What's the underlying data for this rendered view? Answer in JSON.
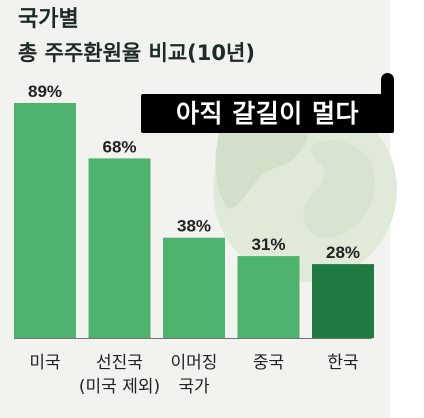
{
  "chart_data": {
    "type": "bar",
    "title": "국가별",
    "subtitle": "총 주주환원율 비교(10년)",
    "badge": "아직 갈길이 멀다",
    "categories": [
      [
        "미국"
      ],
      [
        "선진국",
        "(미국 제외)"
      ],
      [
        "이머징",
        "국가"
      ],
      [
        "중국"
      ],
      [
        "한국"
      ]
    ],
    "values": [
      89,
      68,
      38,
      31,
      28
    ],
    "value_labels": [
      "89%",
      "68%",
      "38%",
      "31%",
      "28%"
    ],
    "ylim": [
      0,
      100
    ],
    "grid": false,
    "colors": {
      "bar": "#4db36f",
      "bar_highlight": "#1f7a43",
      "text": "#222222",
      "axis": "#737373"
    }
  }
}
